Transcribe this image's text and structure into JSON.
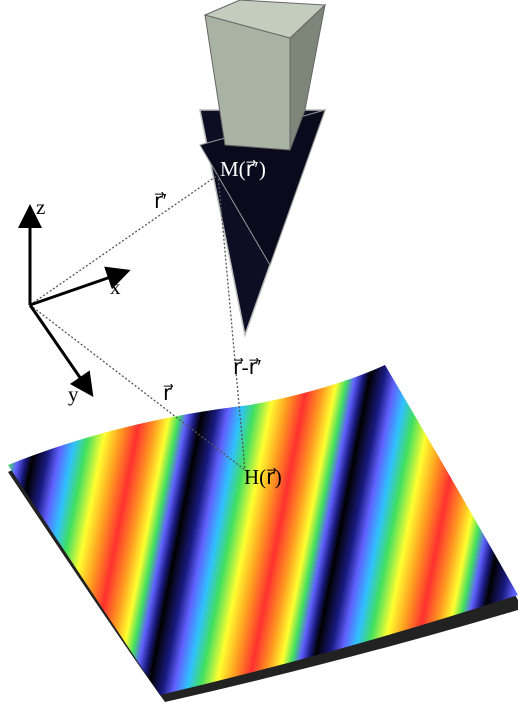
{
  "labels": {
    "z": "z",
    "x": "x",
    "y": "y",
    "r_prime": "r⃗′",
    "r": "r⃗",
    "r_diff": "r⃗-r⃗′",
    "tip": "M(r⃗′)",
    "sample": "H(r⃗)"
  }
}
